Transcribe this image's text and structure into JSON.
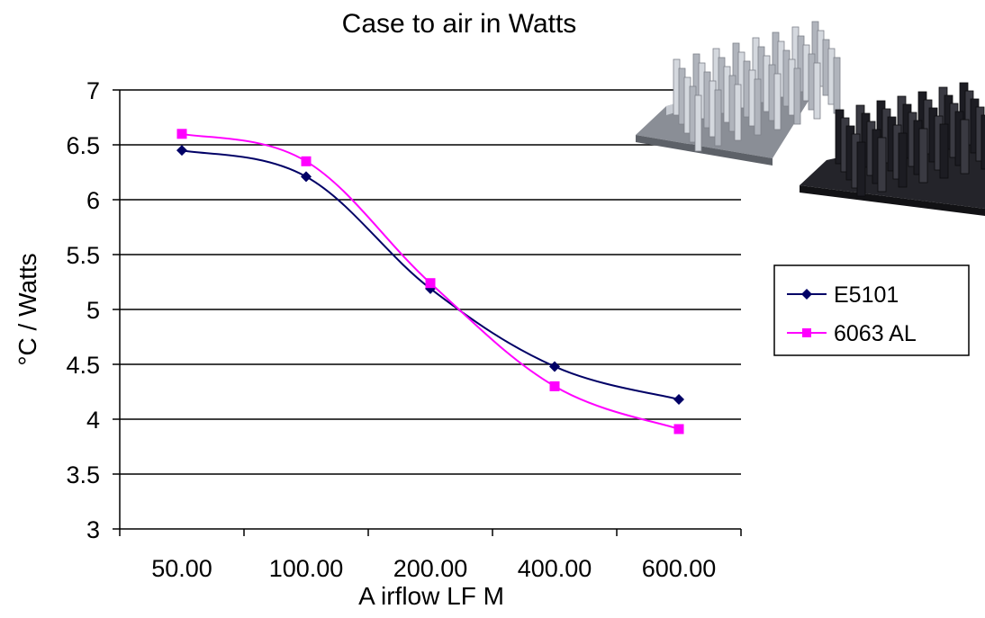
{
  "chart_data": {
    "type": "line",
    "title": "Case to air in Watts",
    "xlabel": "A irflow LF M",
    "ylabel": "°C / Watts",
    "categories": [
      "50.00",
      "100.00",
      "200.00",
      "400.00",
      "600.00"
    ],
    "ylim": [
      3,
      7
    ],
    "yticks": [
      "3",
      "3.5",
      "4",
      "4.5",
      "5",
      "5.5",
      "6",
      "6.5",
      "7"
    ],
    "grid": true,
    "legend_position": "right",
    "series": [
      {
        "name": "E5101",
        "values": [
          6.45,
          6.21,
          5.19,
          4.48,
          4.18
        ],
        "color": "#000066",
        "marker": "diamond"
      },
      {
        "name": "6063 AL",
        "values": [
          6.6,
          6.35,
          5.24,
          4.3,
          3.91
        ],
        "color": "#ff00ff",
        "marker": "square"
      }
    ]
  },
  "decorations": {
    "images": [
      {
        "name": "aluminum-pin-fin-heatsink-icon",
        "color": "#b8bcc4"
      },
      {
        "name": "black-pin-fin-heatsink-icon",
        "color": "#2a2a30"
      }
    ]
  }
}
